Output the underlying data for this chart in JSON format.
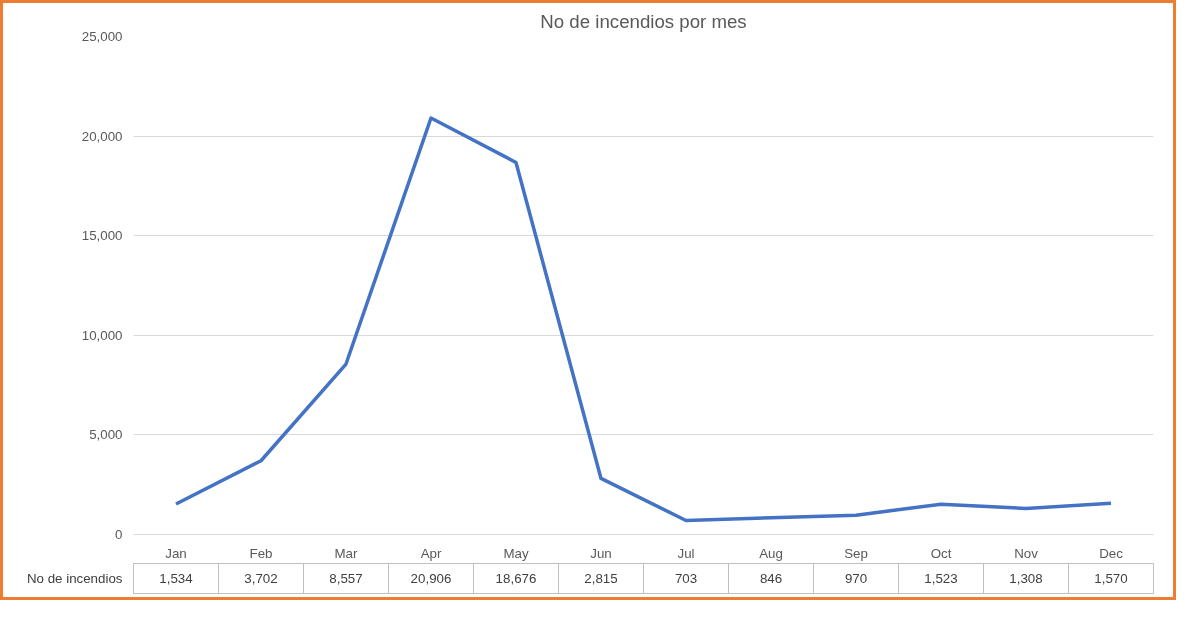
{
  "chart_data": {
    "type": "line",
    "title": "No de incendios por mes",
    "categories": [
      "Jan",
      "Feb",
      "Mar",
      "Apr",
      "May",
      "Jun",
      "Jul",
      "Aug",
      "Sep",
      "Oct",
      "Nov",
      "Dec"
    ],
    "series": [
      {
        "name": "No de incendios",
        "color": "#4472c4",
        "values": [
          1534,
          3702,
          8557,
          20906,
          18676,
          2815,
          703,
          846,
          970,
          1523,
          1308,
          1570
        ],
        "value_labels": [
          "1,534",
          "3,702",
          "8,557",
          "20,906",
          "18,676",
          "2,815",
          "703",
          "846",
          "970",
          "1,523",
          "1,308",
          "1,570"
        ]
      }
    ],
    "ylim": [
      0,
      25000
    ],
    "yticks": [
      {
        "value": 0,
        "label": "0"
      },
      {
        "value": 5000,
        "label": "5,000"
      },
      {
        "value": 10000,
        "label": "10,000"
      },
      {
        "value": 15000,
        "label": "15,000"
      },
      {
        "value": 20000,
        "label": "20,000"
      },
      {
        "value": 25000,
        "label": "25,000"
      }
    ],
    "grid": "y",
    "marker": "none",
    "line_style": "solid"
  }
}
